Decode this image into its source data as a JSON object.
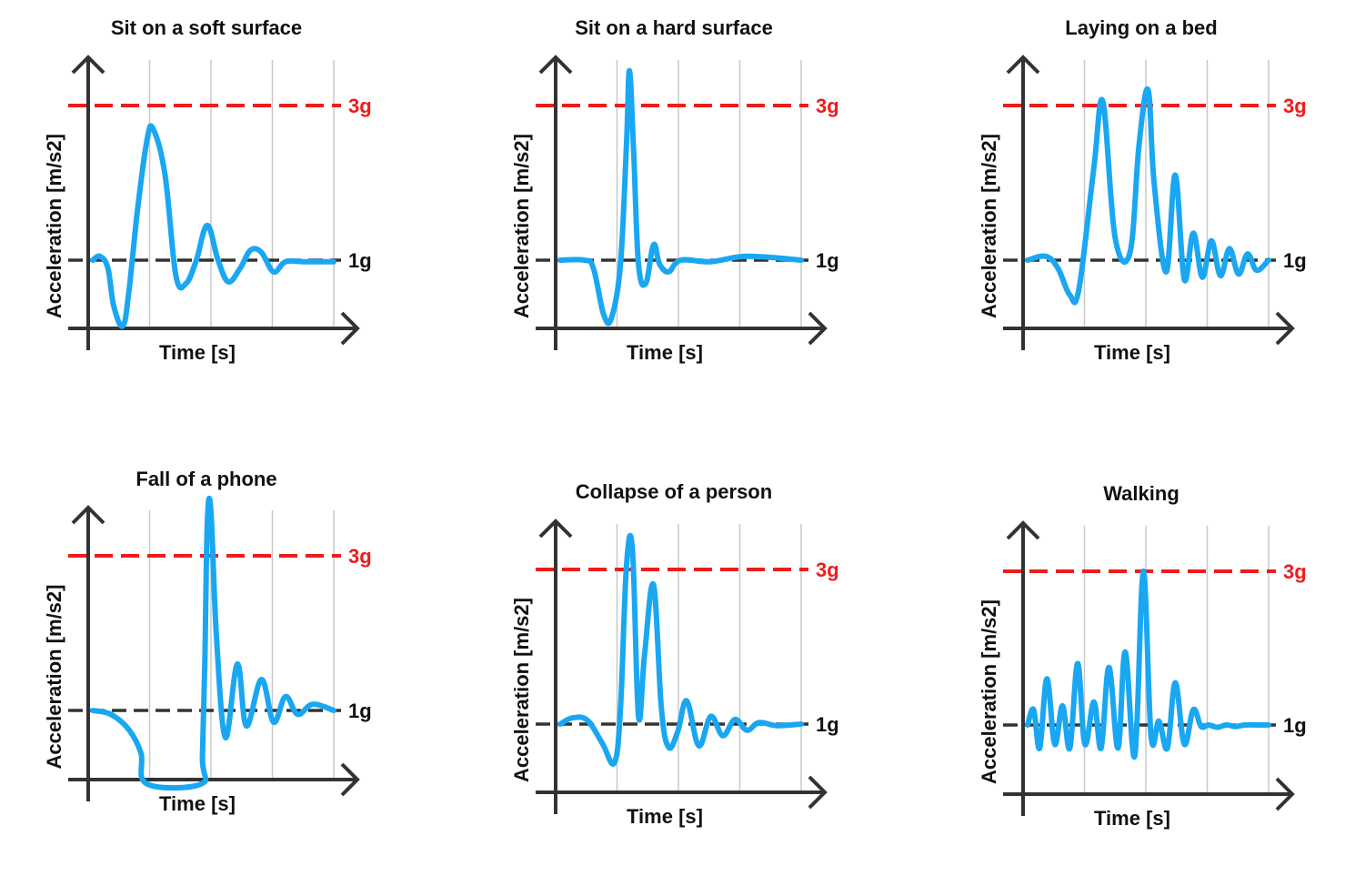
{
  "colors": {
    "signal": "#1aa7f2",
    "threshold_3g": "#ee1c1c",
    "baseline_1g": "#333333",
    "axis": "#333333",
    "grid": "#c8c8c8"
  },
  "chart_data": [
    {
      "type": "line",
      "title": "Sit on a soft surface",
      "xlabel": "Time [s]",
      "ylabel": "Acceleration [m/s2]",
      "reference_lines": [
        {
          "label": "3g",
          "value": 3
        },
        {
          "label": "1g",
          "value": 1
        }
      ],
      "grid": "vertical",
      "ylim": [
        0,
        4
      ],
      "xlim": [
        0,
        4
      ],
      "series": [
        {
          "x": [
            0,
            0.12,
            0.25,
            0.35,
            0.5,
            0.6,
            0.75,
            0.9,
            1.0,
            1.2,
            1.38,
            1.55,
            1.72,
            1.9,
            2.08,
            2.25,
            2.45,
            2.62,
            2.8,
            3.0,
            3.2,
            3.5,
            4.0
          ],
          "y": [
            1,
            1.05,
            0.9,
            0.4,
            0.15,
            0.6,
            1.7,
            2.55,
            2.7,
            2.1,
            0.8,
            0.7,
            1.0,
            1.45,
            1.0,
            0.72,
            0.9,
            1.13,
            1.1,
            0.85,
            0.98,
            0.98,
            0.98
          ]
        }
      ]
    },
    {
      "type": "line",
      "title": "Sit on a hard surface",
      "xlabel": "Time [s]",
      "ylabel": "Acceleration [m/s2]",
      "reference_lines": [
        {
          "label": "3g",
          "value": 3
        },
        {
          "label": "1g",
          "value": 1
        }
      ],
      "grid": "vertical",
      "ylim": [
        0,
        4
      ],
      "xlim": [
        0,
        4
      ],
      "series": [
        {
          "x": [
            0,
            0.4,
            0.55,
            0.72,
            0.85,
            1.0,
            1.1,
            1.15,
            1.22,
            1.3,
            1.42,
            1.55,
            1.65,
            1.8,
            2.0,
            2.5,
            3.1,
            4.0
          ],
          "y": [
            1,
            1.0,
            0.9,
            0.3,
            0.25,
            0.95,
            2.5,
            3.45,
            2.4,
            0.95,
            0.7,
            1.2,
            0.95,
            0.85,
            1.0,
            0.98,
            1.05,
            1.0
          ]
        }
      ]
    },
    {
      "type": "line",
      "title": "Laying on a bed",
      "xlabel": "Time [s]",
      "ylabel": "Acceleration [m/s2]",
      "reference_lines": [
        {
          "label": "3g",
          "value": 3
        },
        {
          "label": "1g",
          "value": 1
        }
      ],
      "grid": "vertical",
      "ylim": [
        0,
        4
      ],
      "xlim": [
        0,
        4
      ],
      "series": [
        {
          "x": [
            0,
            0.3,
            0.5,
            0.7,
            0.85,
            1.1,
            1.25,
            1.45,
            1.7,
            1.85,
            2.0,
            2.1,
            2.3,
            2.45,
            2.6,
            2.75,
            2.9,
            3.05,
            3.2,
            3.35,
            3.5,
            3.65,
            3.8,
            4.0
          ],
          "y": [
            1,
            1.05,
            0.9,
            0.55,
            0.62,
            2.2,
            3.05,
            1.3,
            1.1,
            2.5,
            3.2,
            2.0,
            0.85,
            2.1,
            0.75,
            1.35,
            0.78,
            1.25,
            0.8,
            1.15,
            0.82,
            1.08,
            0.87,
            1.0
          ]
        }
      ]
    },
    {
      "type": "line",
      "title": "Fall of a phone",
      "xlabel": "Time [s]",
      "ylabel": "Acceleration [m/s2]",
      "reference_lines": [
        {
          "label": "3g",
          "value": 3
        },
        {
          "label": "1g",
          "value": 1
        }
      ],
      "grid": "vertical",
      "ylim": [
        0,
        4
      ],
      "xlim": [
        0,
        4
      ],
      "series": [
        {
          "x": [
            0,
            0.3,
            0.6,
            0.8,
            0.9,
            1.8,
            1.82,
            1.86,
            1.9,
            1.96,
            2.05,
            2.2,
            2.4,
            2.55,
            2.8,
            3.0,
            3.2,
            3.4,
            3.65,
            4.0
          ],
          "y": [
            1,
            0.95,
            0.75,
            0.45,
            0.05,
            0.05,
            0.4,
            1.6,
            3.4,
            3.6,
            2.0,
            0.65,
            1.6,
            0.8,
            1.4,
            0.85,
            1.18,
            0.95,
            1.08,
            1.0
          ]
        }
      ]
    },
    {
      "type": "line",
      "title": "Collapse of a person",
      "xlabel": "Time [s]",
      "ylabel": "Acceleration [m/s2]",
      "reference_lines": [
        {
          "label": "3g",
          "value": 3
        },
        {
          "label": "1g",
          "value": 1
        }
      ],
      "grid": "vertical",
      "ylim": [
        0,
        4
      ],
      "xlim": [
        0,
        4
      ],
      "series": [
        {
          "x": [
            0,
            0.2,
            0.45,
            0.7,
            0.9,
            1.0,
            1.1,
            1.2,
            1.3,
            1.4,
            1.55,
            1.68,
            1.8,
            1.95,
            2.1,
            2.3,
            2.5,
            2.7,
            2.9,
            3.1,
            3.3,
            3.6,
            4.0
          ],
          "y": [
            1,
            1.08,
            1.05,
            0.75,
            0.5,
            1.2,
            3.05,
            3.25,
            1.1,
            1.9,
            2.8,
            1.2,
            0.7,
            0.9,
            1.3,
            0.72,
            1.1,
            0.85,
            1.06,
            0.92,
            1.02,
            0.98,
            1.0
          ]
        }
      ]
    },
    {
      "type": "line",
      "title": "Walking",
      "xlabel": "Time [s]",
      "ylabel": "Acceleration [m/s2]",
      "reference_lines": [
        {
          "label": "3g",
          "value": 3
        },
        {
          "label": "1g",
          "value": 1
        }
      ],
      "grid": "vertical",
      "ylim": [
        0,
        4
      ],
      "xlim": [
        0,
        4
      ],
      "series": [
        {
          "x": [
            0,
            0.1,
            0.2,
            0.32,
            0.45,
            0.58,
            0.7,
            0.83,
            0.95,
            1.1,
            1.22,
            1.35,
            1.5,
            1.62,
            1.78,
            1.92,
            2.05,
            2.18,
            2.32,
            2.45,
            2.6,
            2.75,
            2.88,
            3.0,
            3.15,
            3.3,
            3.45,
            3.6,
            3.8,
            4.0
          ],
          "y": [
            1,
            1.2,
            0.7,
            1.6,
            0.75,
            1.25,
            0.7,
            1.8,
            0.75,
            1.3,
            0.7,
            1.75,
            0.7,
            1.95,
            0.6,
            3.0,
            0.85,
            1.05,
            0.7,
            1.55,
            0.75,
            1.2,
            0.98,
            1.0,
            0.97,
            1.0,
            0.98,
            1.0,
            1.0,
            1.0
          ]
        }
      ]
    }
  ]
}
